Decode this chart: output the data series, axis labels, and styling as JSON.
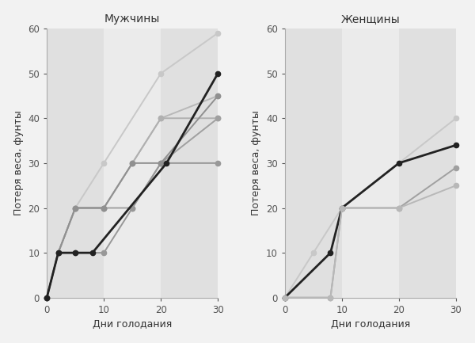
{
  "title_left": "Мужчины",
  "title_right": "Женщины",
  "xlabel": "Дни голодания",
  "ylabel": "Потеря веса, фунты",
  "xlim": [
    0,
    30
  ],
  "ylim": [
    0,
    60
  ],
  "xticks": [
    0,
    10,
    20,
    30
  ],
  "yticks": [
    0,
    10,
    20,
    30,
    40,
    50,
    60
  ],
  "men_series": [
    {
      "x": [
        0,
        2,
        5,
        10,
        20,
        30
      ],
      "y": [
        0,
        10,
        20,
        30,
        50,
        59
      ],
      "color": "#c8c8c8",
      "lw": 1.4
    },
    {
      "x": [
        0,
        2,
        5,
        10,
        15,
        20,
        30
      ],
      "y": [
        0,
        10,
        20,
        20,
        30,
        40,
        45
      ],
      "color": "#b8b8b8",
      "lw": 1.4
    },
    {
      "x": [
        0,
        2,
        5,
        10,
        15,
        20,
        30
      ],
      "y": [
        0,
        10,
        20,
        20,
        30,
        40,
        40
      ],
      "color": "#b0b0b0",
      "lw": 1.4
    },
    {
      "x": [
        0,
        2,
        5,
        10,
        15,
        20,
        30
      ],
      "y": [
        0,
        10,
        20,
        20,
        20,
        30,
        40
      ],
      "color": "#a0a0a0",
      "lw": 1.4
    },
    {
      "x": [
        0,
        2,
        5,
        10,
        15,
        20,
        30
      ],
      "y": [
        0,
        10,
        10,
        10,
        20,
        30,
        30
      ],
      "color": "#989898",
      "lw": 1.4
    },
    {
      "x": [
        0,
        2,
        5,
        10,
        15,
        20,
        30
      ],
      "y": [
        0,
        10,
        20,
        20,
        30,
        30,
        45
      ],
      "color": "#909090",
      "lw": 1.4
    },
    {
      "x": [
        0,
        2,
        5,
        8,
        21,
        30
      ],
      "y": [
        0,
        10,
        10,
        10,
        30,
        50
      ],
      "color": "#222222",
      "lw": 2.0
    }
  ],
  "women_series": [
    {
      "x": [
        0,
        5,
        10,
        30
      ],
      "y": [
        0,
        10,
        20,
        40
      ],
      "color": "#c8c8c8",
      "lw": 1.4
    },
    {
      "x": [
        0,
        8,
        10,
        20,
        30
      ],
      "y": [
        0,
        10,
        20,
        30,
        34
      ],
      "color": "#222222",
      "lw": 2.0
    },
    {
      "x": [
        0,
        8,
        10,
        20,
        30
      ],
      "y": [
        0,
        0,
        20,
        20,
        29
      ],
      "color": "#a0a0a0",
      "lw": 1.4
    },
    {
      "x": [
        0,
        8,
        10,
        20,
        30
      ],
      "y": [
        0,
        0,
        20,
        20,
        25
      ],
      "color": "#b8b8b8",
      "lw": 1.4
    }
  ],
  "bg_color": "#f2f2f2",
  "plot_bg_light": "#ebebeb",
  "plot_bg_dark": "#e0e0e0",
  "col_bounds": [
    0,
    10,
    20,
    30
  ],
  "marker": "o",
  "markersize": 4.5,
  "title_fontsize": 10,
  "label_fontsize": 9,
  "tick_fontsize": 8.5
}
